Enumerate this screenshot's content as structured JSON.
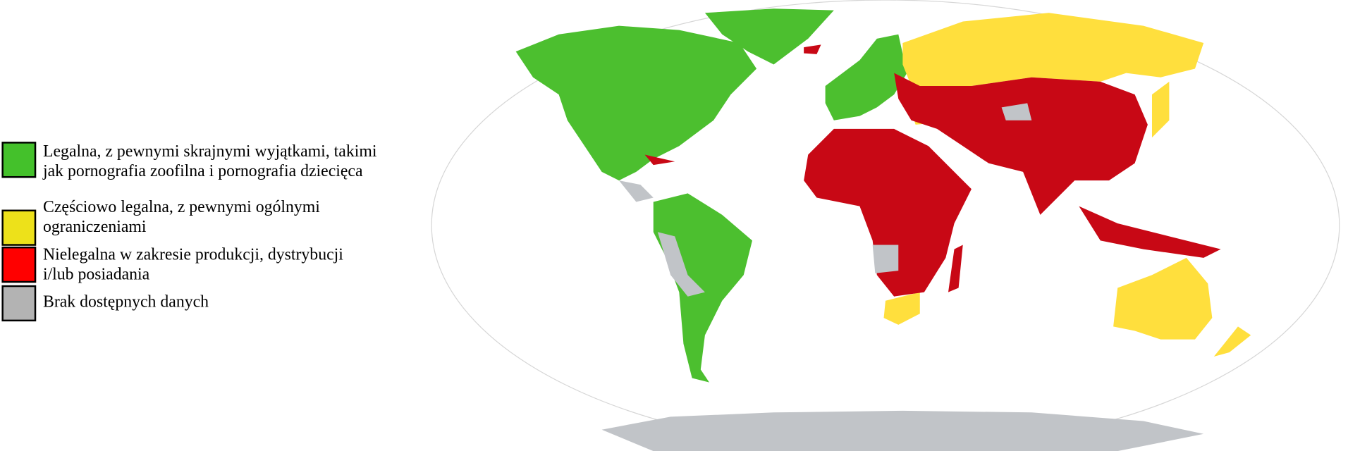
{
  "legend": [
    {
      "label_1": "Legalna, z pewnymi skrajnymi wyjątkami, takimi",
      "label_2": "jak pornografia zoofilna i pornografia dziecięca",
      "color": "#44c12b"
    },
    {
      "label_1": "Częściowo legalna, z pewnymi ogólnymi",
      "label_2": "ograniczeniami",
      "color": "#ede11a"
    },
    {
      "label_1": "Nielegalna w zakresie produkcji, dystrybucji",
      "label_2": "i/lub posiadania",
      "color": "#ff0000"
    },
    {
      "label_1": "Brak dostępnych danych",
      "label_2": "",
      "color": "#b3b3b3"
    }
  ],
  "map_colors": {
    "legal": "#4cbf2f",
    "partial": "#ffdf3d",
    "illegal": "#c80815",
    "no_data": "#c1c4c8",
    "ocean": "#ffffff",
    "outline": "#d0d0d0"
  }
}
